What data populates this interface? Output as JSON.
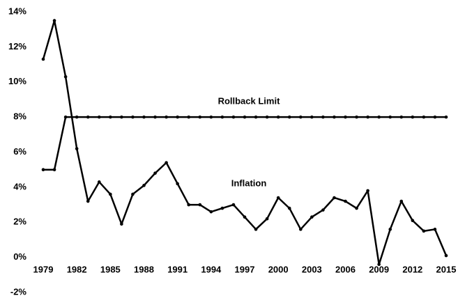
{
  "chart_data": {
    "type": "line",
    "x": [
      1979,
      1980,
      1981,
      1982,
      1983,
      1984,
      1985,
      1986,
      1987,
      1988,
      1989,
      1990,
      1991,
      1992,
      1993,
      1994,
      1995,
      1996,
      1997,
      1998,
      1999,
      2000,
      2001,
      2002,
      2003,
      2004,
      2005,
      2006,
      2007,
      2008,
      2009,
      2010,
      2011,
      2012,
      2013,
      2014,
      2015
    ],
    "series": [
      {
        "name": "Inflation",
        "color": "#000000",
        "values": [
          11.3,
          13.5,
          10.3,
          6.2,
          3.2,
          4.3,
          3.6,
          1.9,
          3.6,
          4.1,
          4.8,
          5.4,
          4.2,
          3.0,
          3.0,
          2.6,
          2.8,
          3.0,
          2.3,
          1.6,
          2.2,
          3.4,
          2.8,
          1.6,
          2.3,
          2.7,
          3.4,
          3.2,
          2.8,
          3.8,
          -0.4,
          1.6,
          3.2,
          2.1,
          1.5,
          1.6,
          0.1
        ]
      },
      {
        "name": "Rollback Limit",
        "color": "#000000",
        "values": [
          5,
          5,
          8,
          8,
          8,
          8,
          8,
          8,
          8,
          8,
          8,
          8,
          8,
          8,
          8,
          8,
          8,
          8,
          8,
          8,
          8,
          8,
          8,
          8,
          8,
          8,
          8,
          8,
          8,
          8,
          8,
          8,
          8,
          8,
          8,
          8,
          8
        ]
      }
    ],
    "annotations": [
      "Rollback Limit",
      "Inflation"
    ],
    "xlim": [
      1979,
      2015
    ],
    "xticks": [
      1979,
      1982,
      1985,
      1988,
      1991,
      1994,
      1997,
      2000,
      2003,
      2006,
      2009,
      2012,
      2015
    ],
    "ylim": [
      -2,
      14
    ],
    "yticks": [
      {
        "value": -2,
        "label": "-2%"
      },
      {
        "value": 0,
        "label": "0%"
      },
      {
        "value": 2,
        "label": "2%"
      },
      {
        "value": 4,
        "label": "4%"
      },
      {
        "value": 6,
        "label": "6%"
      },
      {
        "value": 8,
        "label": "8%"
      },
      {
        "value": 10,
        "label": "10%"
      },
      {
        "value": 12,
        "label": "12%"
      },
      {
        "value": 14,
        "label": "14%"
      }
    ],
    "grid": false
  }
}
